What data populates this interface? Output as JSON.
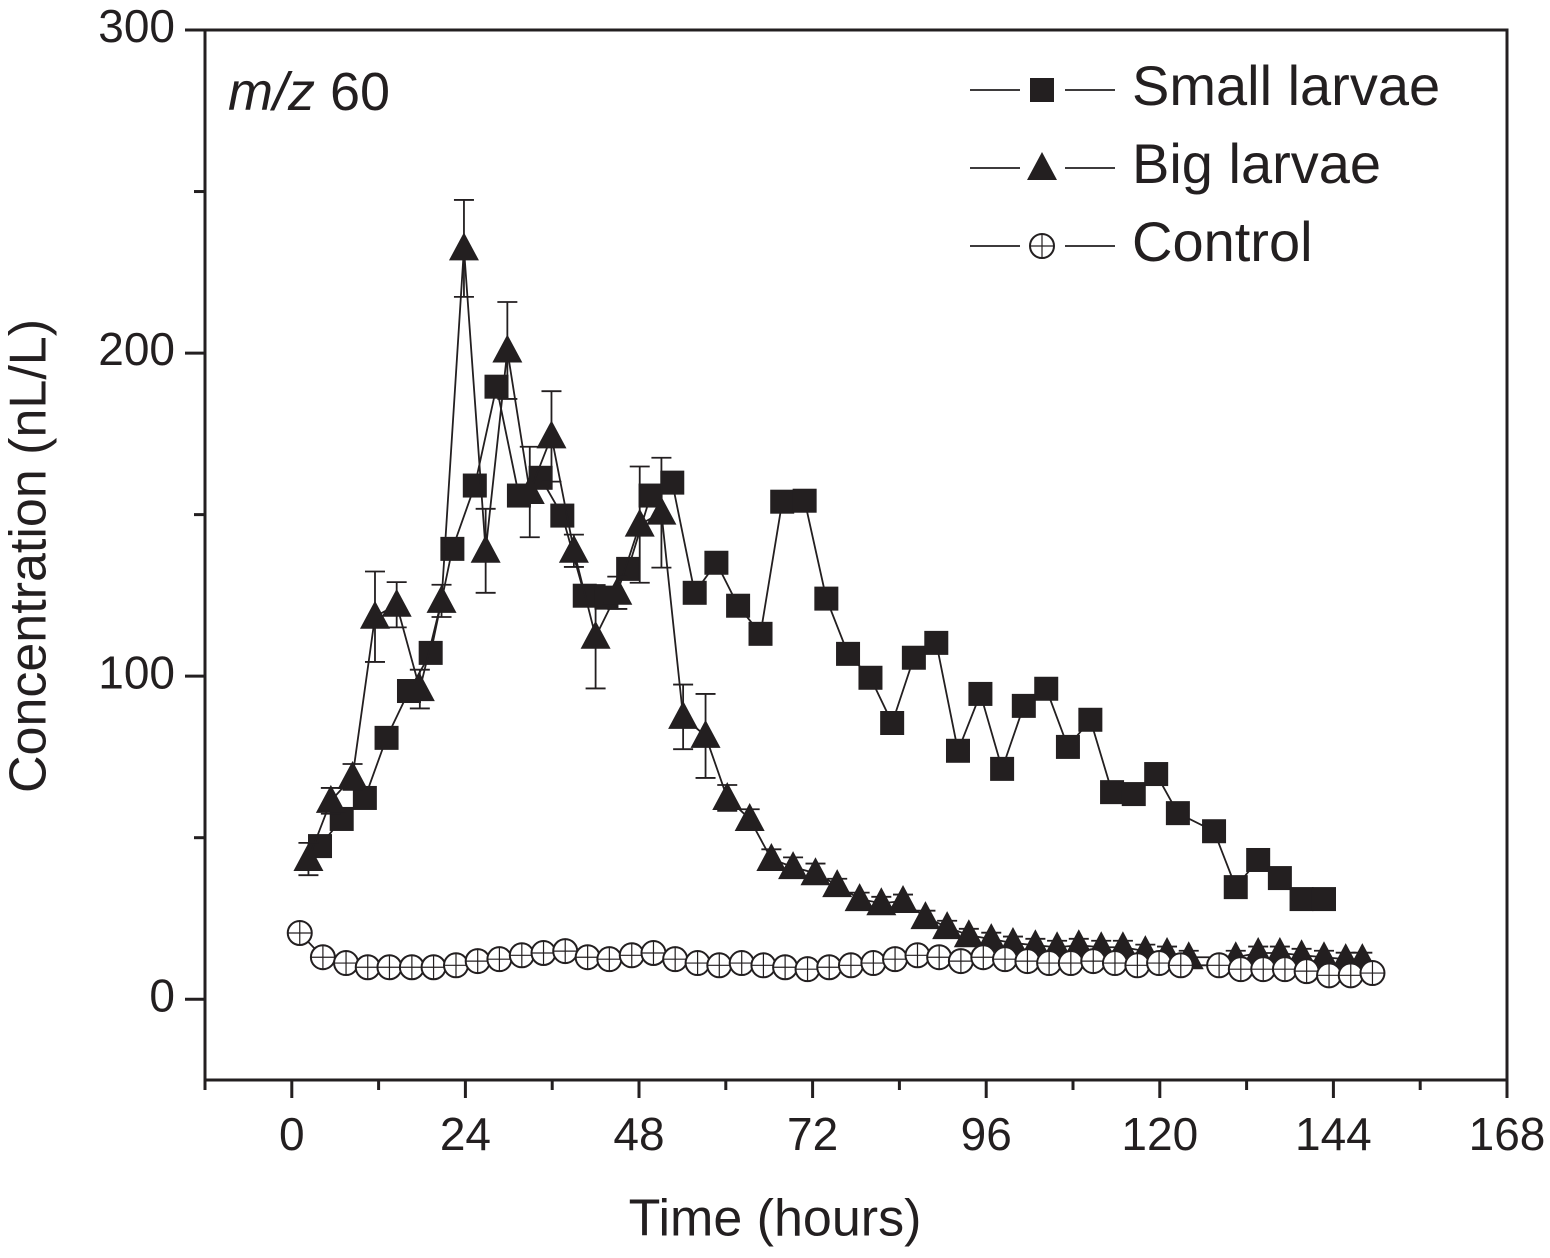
{
  "chart_data": {
    "type": "line",
    "annotation": {
      "italic": "m/z",
      "text": "60"
    },
    "x_label": "Time (hours)",
    "y_label": "Concentration (nL/L)",
    "xlim": [
      -12,
      168
    ],
    "xticks": [
      0,
      24,
      48,
      72,
      96,
      120,
      144,
      168
    ],
    "xminor": [
      -12,
      12,
      36,
      60,
      84,
      108,
      132,
      156
    ],
    "ylim": [
      -25,
      300
    ],
    "yticks": [
      0,
      100,
      200,
      300
    ],
    "yminor": [
      50,
      150,
      250
    ],
    "legend": "top-right",
    "series": [
      {
        "name": "Small larvae",
        "marker": "square",
        "color": "#231f20",
        "x": [
          3.9,
          6.9,
          10.1,
          13.1,
          16.2,
          19.2,
          22.2,
          25.3,
          28.3,
          31.4,
          34.4,
          37.4,
          40.5,
          43.5,
          46.5,
          49.6,
          52.6,
          55.7,
          58.7,
          61.7,
          64.8,
          67.8,
          70.9,
          73.9,
          76.9,
          80,
          83,
          86,
          89.1,
          92.1,
          95.2,
          98.2,
          101.2,
          104.3,
          107.3,
          110.4,
          113.4,
          116.4,
          119.5,
          122.5,
          127.5,
          130.5,
          133.6,
          136.6,
          139.6,
          142.7
        ],
        "values": [
          47.4,
          55.8,
          62.3,
          80.9,
          95.4,
          107.2,
          139.4,
          159,
          189.6,
          155.9,
          161.4,
          149.7,
          124.9,
          124.3,
          133.2,
          155.9,
          159.9,
          125.8,
          135.1,
          121.8,
          113.1,
          154,
          154.3,
          124,
          106.9,
          99.5,
          85.5,
          105.7,
          110.3,
          76.9,
          94.5,
          71.3,
          90.8,
          96.1,
          78.1,
          86.5,
          64.1,
          63.5,
          69.7,
          57.6,
          52,
          34.7,
          43.1,
          37.5,
          31,
          31
        ]
      },
      {
        "name": "Big larvae",
        "marker": "triangle",
        "color": "#231f20",
        "x": [
          2.3,
          5.4,
          8.4,
          11.5,
          14.5,
          17.7,
          20.7,
          23.8,
          26.8,
          29.8,
          32.9,
          35.9,
          39,
          42,
          45,
          48.1,
          51.1,
          54.1,
          57.2,
          60.2,
          63.3,
          66.3,
          69.3,
          72.4,
          75.4,
          78.5,
          81.5,
          84.5,
          87.6,
          90.6,
          93.6,
          96.7,
          99.7,
          102.8,
          105.8,
          108.8,
          111.9,
          114.9,
          118,
          121,
          124,
          130.5,
          133.6,
          136.6,
          139.6,
          142.7,
          145.7,
          148
        ],
        "values": [
          43.4,
          61.4,
          68.8,
          118.4,
          122.1,
          96,
          123.3,
          232.4,
          138.8,
          200.8,
          157,
          174.2,
          138.8,
          112.2,
          125.8,
          146.9,
          150.6,
          87.4,
          81.5,
          62.3,
          55.8,
          43.4,
          40.9,
          39,
          35.3,
          31,
          29.7,
          30.4,
          25.4,
          22.3,
          19.8,
          18.6,
          17.4,
          16.7,
          16.1,
          16.7,
          16.1,
          16.1,
          14.9,
          14.3,
          13,
          13,
          14.3,
          14.3,
          13.6,
          13,
          12.4,
          12.4
        ],
        "errors": [
          5,
          4,
          4,
          14,
          7,
          6,
          5,
          15,
          13,
          15,
          14,
          14,
          5,
          16,
          5,
          18,
          17,
          10,
          13,
          4,
          3,
          3,
          3,
          3,
          2,
          2,
          2,
          2,
          2,
          2,
          2,
          2,
          2,
          2,
          2,
          2,
          2,
          2,
          2,
          2,
          2,
          2,
          2,
          2,
          2,
          2,
          2,
          2
        ]
      },
      {
        "name": "Control",
        "marker": "circle",
        "color": "#231f20",
        "x": [
          1.1,
          4.3,
          7.5,
          10.5,
          13.5,
          16.6,
          19.6,
          22.7,
          25.7,
          28.7,
          31.8,
          34.8,
          37.8,
          40.9,
          43.9,
          47,
          50,
          53,
          56.1,
          59.1,
          62.2,
          65.2,
          68.2,
          71.3,
          74.3,
          77.3,
          80.4,
          83.4,
          86.5,
          89.5,
          92.5,
          95.6,
          98.6,
          101.7,
          104.7,
          107.7,
          110.8,
          113.8,
          116.9,
          119.9,
          122.9,
          128.2,
          131.2,
          134.3,
          137.3,
          140.3,
          143.4,
          146.4,
          149.4
        ],
        "values": [
          20.5,
          13,
          11.2,
          9.9,
          9.9,
          9.9,
          9.9,
          10.5,
          11.8,
          12.4,
          13.6,
          14.3,
          14.9,
          13,
          12.4,
          13.6,
          14.3,
          12.4,
          11.2,
          10.5,
          11.2,
          10.5,
          9.9,
          9.3,
          9.9,
          10.5,
          11.2,
          12.4,
          13.6,
          13,
          11.8,
          13,
          12.4,
          11.8,
          11.2,
          11.2,
          11.8,
          11.2,
          10.5,
          11.2,
          10.5,
          10.5,
          9.3,
          9.3,
          9.3,
          8.7,
          7.4,
          7.4,
          8.1
        ]
      }
    ]
  }
}
